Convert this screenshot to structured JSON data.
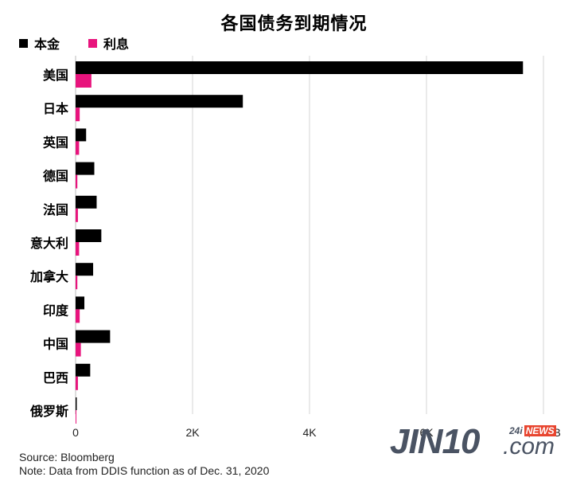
{
  "title": "各国债务到期情况",
  "legend": [
    {
      "label": "本金",
      "color": "#000000"
    },
    {
      "label": "利息",
      "color": "#e8147d"
    }
  ],
  "chart_data": {
    "type": "bar",
    "orientation": "horizontal",
    "categories": [
      "美国",
      "日本",
      "英国",
      "德国",
      "法国",
      "意大利",
      "加拿大",
      "印度",
      "中国",
      "巴西",
      "俄罗斯"
    ],
    "series": [
      {
        "name": "本金",
        "color": "#000000",
        "values": [
          7650,
          2860,
          180,
          320,
          360,
          440,
          300,
          150,
          590,
          250,
          20
        ]
      },
      {
        "name": "利息",
        "color": "#e8147d",
        "values": [
          270,
          70,
          60,
          30,
          40,
          60,
          30,
          70,
          90,
          40,
          10
        ]
      }
    ],
    "x_ticks": [
      "0",
      "2K",
      "4K",
      "6K",
      "$8K"
    ],
    "x_unit": "KB",
    "xlim": [
      0,
      8000
    ],
    "grid": "vertical"
  },
  "footer": {
    "source": "Source: Bloomberg",
    "note": "Note: Data from DDIS function as of Dec. 31, 2020"
  },
  "watermark": {
    "main": "JIN10",
    "com": ".com",
    "small": "24i",
    "news": "NEWS"
  }
}
